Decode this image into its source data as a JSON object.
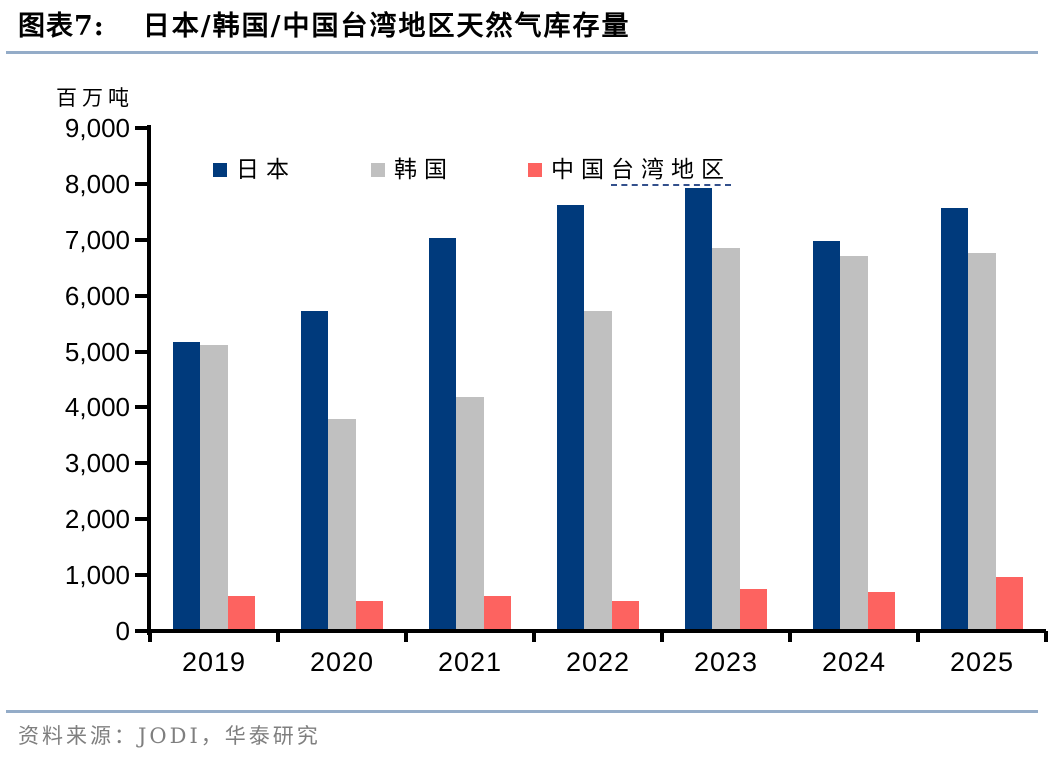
{
  "header": {
    "title_label": "图表7:",
    "title_text": "日本/韩国/中国台湾地区天然气库存量"
  },
  "footer": {
    "source_text": "资料来源：JODI，华泰研究"
  },
  "theme": {
    "divider_color": "#94acc8",
    "source_text_color": "#7f7f7f",
    "axis_color": "#000000",
    "legend_underline_color": "#33508c",
    "navy": "#003a7c",
    "gray": "#c0c0c0",
    "coral": "#fd6360"
  },
  "chart_data": {
    "type": "bar",
    "title": "日本/韩国/中国台湾地区天然气库存量",
    "unit_label": "百万吨",
    "xlabel": "",
    "ylabel": "百万吨",
    "categories": [
      "2019",
      "2020",
      "2021",
      "2022",
      "2023",
      "2024",
      "2025"
    ],
    "series": [
      {
        "name": "日本",
        "color": "#003a7c",
        "values": [
          5170,
          5730,
          7030,
          7620,
          7930,
          6980,
          7570
        ]
      },
      {
        "name": "韩国",
        "color": "#c0c0c0",
        "values": [
          5110,
          3800,
          4180,
          5730,
          6850,
          6710,
          6760
        ]
      },
      {
        "name": "中国台湾地区",
        "color": "#fd6360",
        "values": [
          620,
          540,
          630,
          540,
          750,
          700,
          960
        ],
        "label_parts": [
          "中国",
          "台湾地区"
        ]
      }
    ],
    "ylim": [
      0,
      9000
    ],
    "ytick_step": 1000,
    "ytick_labels": [
      "0",
      "1,000",
      "2,000",
      "3,000",
      "4,000",
      "5,000",
      "6,000",
      "7,000",
      "8,000",
      "9,000"
    ],
    "legend_position": "top-inside",
    "grid": false,
    "bar_values_estimated_from_gridlines": true
  }
}
